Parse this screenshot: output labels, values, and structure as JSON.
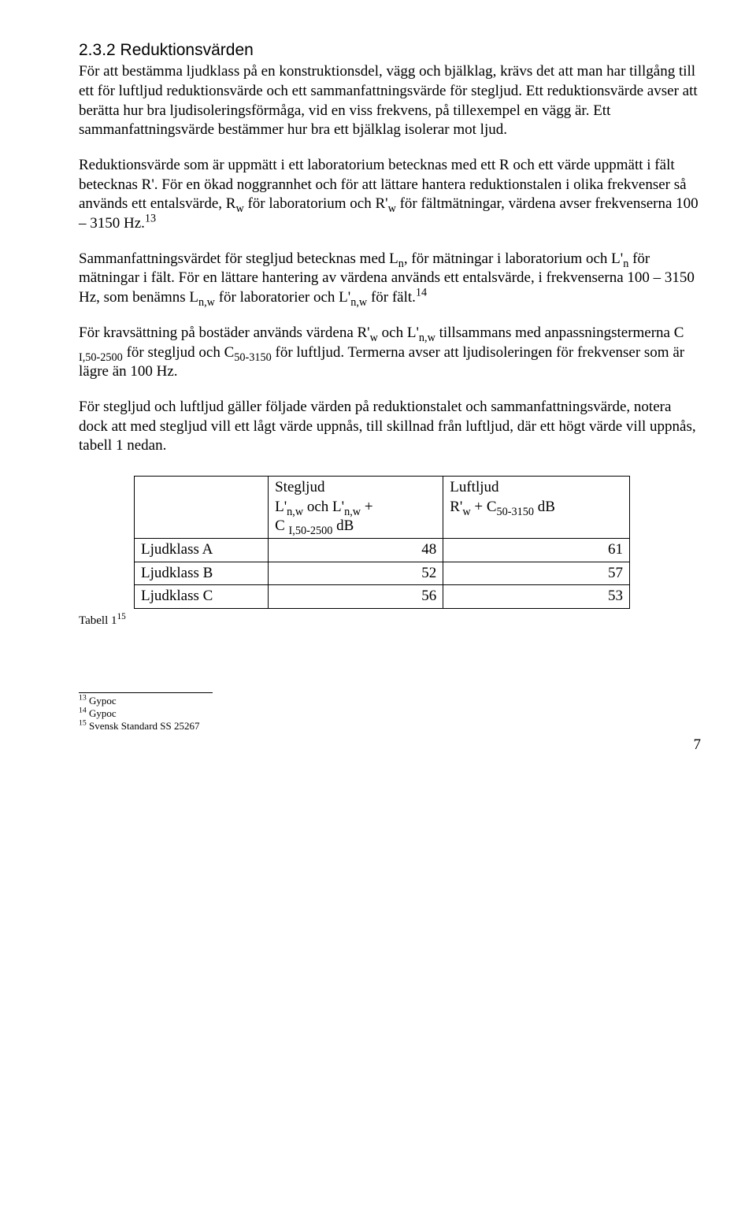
{
  "heading": "2.3.2 Reduktionsvärden",
  "p1": "För att bestämma ljudklass på en konstruktionsdel, vägg och bjälklag, krävs det att man har tillgång till ett för luftljud reduktionsvärde och ett sammanfattningsvärde för stegljud. Ett reduktionsvärde avser att berätta hur bra ljudisoleringsförmåga, vid en viss frekvens, på tillexempel en vägg är. Ett sammanfattningsvärde bestämmer hur bra ett bjälklag isolerar mot ljud.",
  "p2a": "Reduktionsvärde som är uppmätt i ett laboratorium betecknas med ett R och ett värde uppmätt i fält betecknas R'. För en ökad noggrannhet och för att lättare hantera reduktionstalen i olika frekvenser så används ett entalsvärde, R",
  "p2b": " för laboratorium och R'",
  "p2c": " för fältmätningar, värdena avser frekvenserna 100 – 3150 Hz.",
  "p3a": "Sammanfattningsvärdet för stegljud betecknas med L",
  "p3b": ", för mätningar i laboratorium och L'",
  "p3c": " för mätningar i fält. För en lättare hantering av värdena används ett entalsvärde, i frekvenserna 100 – 3150 Hz, som benämns L",
  "p3d": " för laboratorier och L'",
  "p3e": " för fält.",
  "p4a": "För kravsättning på bostäder används värdena R'",
  "p4b": " och L'",
  "p4c": " tillsammans med anpassningstermerna C ",
  "p4d": " för stegljud och C",
  "p4e": " för luftljud. Termerna avser att ljudisoleringen för frekvenser som är lägre än 100 Hz.",
  "p5": "För stegljud och luftljud gäller följade värden på reduktionstalet och sammanfattningsvärde, notera dock att med stegljud vill ett lågt värde uppnås, till skillnad från luftljud, där ett högt värde vill uppnås, tabell 1 nedan.",
  "sub_w": "w",
  "sub_n": "n",
  "sub_nw": "n,w",
  "sub_I50": "I,50-2500",
  "sub_50": "50-3150",
  "fn13": "13",
  "fn14": "14",
  "fn15": "15",
  "table": {
    "head_steg_a": "Stegljud",
    "head_steg_b1": "L'",
    "head_steg_b2": " och L'",
    "head_steg_b3": " +",
    "head_steg_c1": "C ",
    "head_steg_c2": " dB",
    "head_luft_a": "Luftljud",
    "head_luft_b1": "R'",
    "head_luft_b2": " + C",
    "head_luft_b3": " dB",
    "row1_label": "Ljudklass A",
    "row1_v1": "48",
    "row1_v2": "61",
    "row2_label": "Ljudklass B",
    "row2_v1": "52",
    "row2_v2": "57",
    "row3_label": "Ljudklass C",
    "row3_v1": "56",
    "row3_v2": "53"
  },
  "caption_a": "Tabell 1",
  "footnotes": {
    "f13": " Gypoc",
    "f14": " Gypoc",
    "f15": " Svensk Standard SS 25267"
  },
  "page": "7"
}
